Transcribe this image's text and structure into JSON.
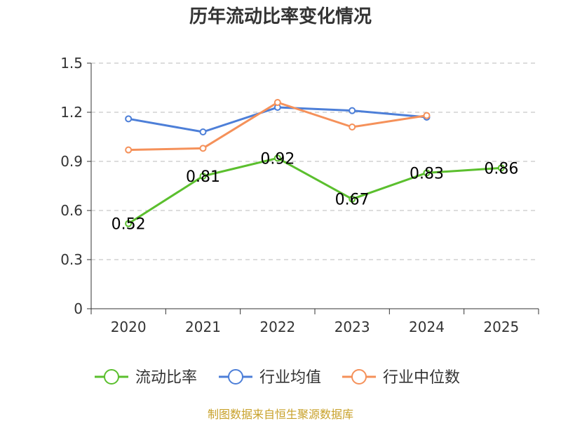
{
  "chart_data": {
    "type": "line",
    "title": "历年流动比率变化情况",
    "categories": [
      "2020",
      "2021",
      "2022",
      "2023",
      "2024",
      "2025"
    ],
    "ylim": [
      0,
      1.5
    ],
    "yticks": [
      "0",
      "0.3",
      "0.6",
      "0.9",
      "1.2",
      "1.5"
    ],
    "grid": true,
    "legend_position": "bottom",
    "series": [
      {
        "name": "流动比率",
        "color": "#5bbf2e",
        "values": [
          0.52,
          0.81,
          0.92,
          0.67,
          0.83,
          0.86
        ],
        "labels": [
          "0.52",
          "0.81",
          "0.92",
          "0.67",
          "0.83",
          "0.86"
        ]
      },
      {
        "name": "行业均值",
        "color": "#4d7fd8",
        "values": [
          1.16,
          1.08,
          1.23,
          1.21,
          1.17,
          null
        ]
      },
      {
        "name": "行业中位数",
        "color": "#f5915a",
        "values": [
          0.97,
          0.98,
          1.26,
          1.11,
          1.18,
          null
        ]
      }
    ]
  },
  "source": "制图数据来自恒生聚源数据库"
}
